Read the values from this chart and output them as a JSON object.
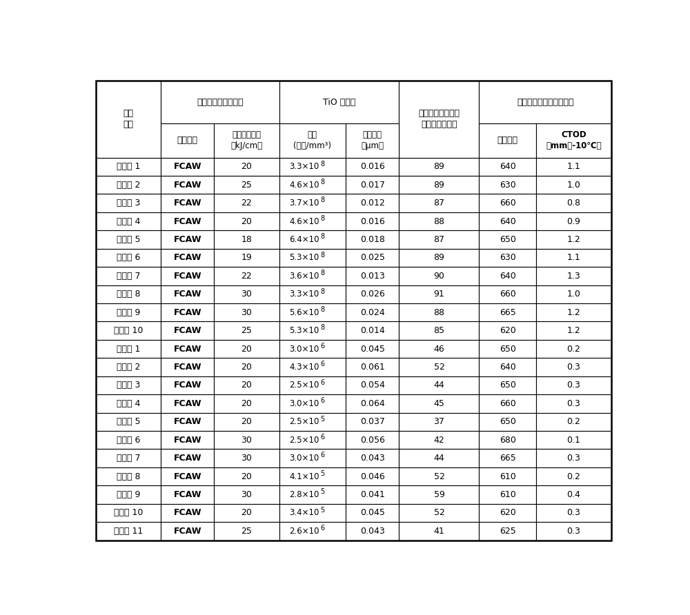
{
  "rows": [
    [
      "发明钔 1",
      "FCAW",
      "20",
      "3.3",
      "8",
      "0.016",
      "89",
      "640",
      "1.1"
    ],
    [
      "发明钔 2",
      "FCAW",
      "25",
      "4.6",
      "8",
      "0.017",
      "89",
      "630",
      "1.0"
    ],
    [
      "发明钔 3",
      "FCAW",
      "22",
      "3.7",
      "8",
      "0.012",
      "87",
      "660",
      "0.8"
    ],
    [
      "发明钔 4",
      "FCAW",
      "20",
      "4.6",
      "8",
      "0.016",
      "88",
      "640",
      "0.9"
    ],
    [
      "发明钔 5",
      "FCAW",
      "18",
      "6.4",
      "8",
      "0.018",
      "87",
      "650",
      "1.2"
    ],
    [
      "发明钔 6",
      "FCAW",
      "19",
      "5.3",
      "8",
      "0.025",
      "89",
      "630",
      "1.1"
    ],
    [
      "发明钔 7",
      "FCAW",
      "22",
      "3.6",
      "8",
      "0.013",
      "90",
      "640",
      "1.3"
    ],
    [
      "发明钔 8",
      "FCAW",
      "30",
      "3.3",
      "8",
      "0.026",
      "91",
      "660",
      "1.0"
    ],
    [
      "发明钔 9",
      "FCAW",
      "30",
      "5.6",
      "8",
      "0.024",
      "88",
      "665",
      "1.2"
    ],
    [
      "发明钔 10",
      "FCAW",
      "25",
      "5.3",
      "8",
      "0.014",
      "85",
      "620",
      "1.2"
    ],
    [
      "对比钔 1",
      "FCAW",
      "20",
      "3.0",
      "6",
      "0.045",
      "46",
      "650",
      "0.2"
    ],
    [
      "对比钔 2",
      "FCAW",
      "20",
      "4.3",
      "6",
      "0.061",
      "52",
      "640",
      "0.3"
    ],
    [
      "对比钔 3",
      "FCAW",
      "20",
      "2.5",
      "6",
      "0.054",
      "44",
      "650",
      "0.3"
    ],
    [
      "对比钔 4",
      "FCAW",
      "20",
      "3.0",
      "6",
      "0.064",
      "45",
      "660",
      "0.3"
    ],
    [
      "对比钔 5",
      "FCAW",
      "20",
      "2.5",
      "5",
      "0.037",
      "37",
      "650",
      "0.2"
    ],
    [
      "对比钔 6",
      "FCAW",
      "30",
      "2.5",
      "6",
      "0.056",
      "42",
      "680",
      "0.1"
    ],
    [
      "对比钔 7",
      "FCAW",
      "30",
      "3.0",
      "6",
      "0.043",
      "44",
      "665",
      "0.3"
    ],
    [
      "对比钔 8",
      "FCAW",
      "20",
      "4.1",
      "5",
      "0.046",
      "52",
      "610",
      "0.2"
    ],
    [
      "对比钔 9",
      "FCAW",
      "30",
      "2.8",
      "5",
      "0.041",
      "59",
      "610",
      "0.4"
    ],
    [
      "对比钔 10",
      "FCAW",
      "20",
      "3.4",
      "5",
      "0.045",
      "52",
      "620",
      "0.3"
    ],
    [
      "对比钔 11",
      "FCAW",
      "25",
      "2.6",
      "6",
      "0.043",
      "41",
      "625",
      "0.3"
    ]
  ],
  "h1_col0": "试验\n编号",
  "h1_weld": "焊接方法和热量输入",
  "h1_tio": "TiO 氧化物",
  "h1_acicular": "焊接金属接头的针\n状铁素体的分数",
  "h1_mech": "焊接金属接头的机械性能",
  "h2_method": "焊接方法",
  "h2_heat": "焊接热量输入\n（kJ/cm）",
  "h2_qty": "数量\n(数量/mm³)",
  "h2_size": "平均粒径\n（μm）",
  "h2_tensile": "抗张强度",
  "h2_ctod": "CTOD\n（mm，-10℃）",
  "bg_color": "#ffffff",
  "border_color": "#000000",
  "figsize": [
    10.0,
    8.92
  ]
}
